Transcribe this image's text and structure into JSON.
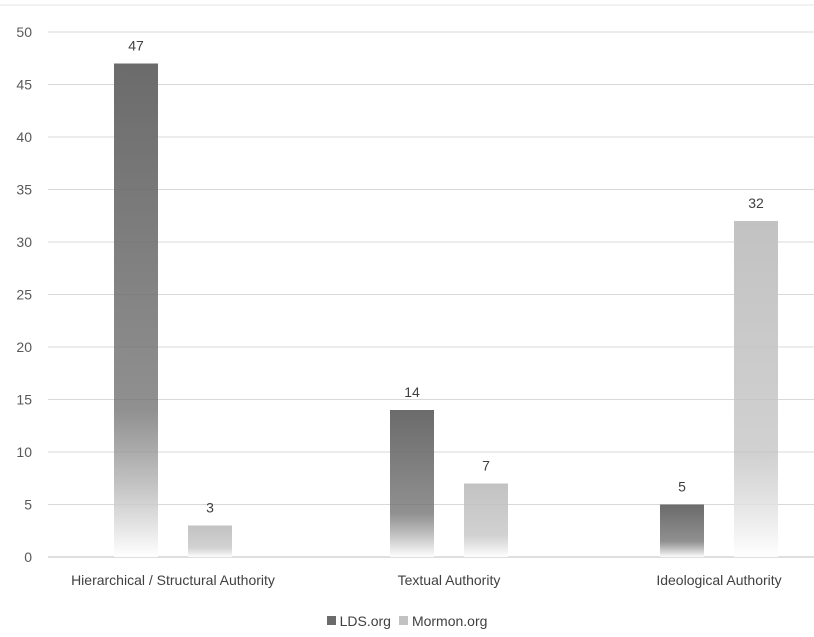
{
  "chart_data": {
    "type": "bar",
    "categories": [
      "Hierarchical / Structural Authority",
      "Textual Authority",
      "Ideological Authority"
    ],
    "series": [
      {
        "name": "LDS.org",
        "values": [
          47,
          14,
          5
        ],
        "color": "#6b6b6b"
      },
      {
        "name": "Mormon.org",
        "values": [
          3,
          7,
          32
        ],
        "color": "#c2c2c2"
      }
    ],
    "title": "",
    "xlabel": "",
    "ylabel": "",
    "ylim": [
      0,
      50
    ],
    "yticks": [
      0,
      5,
      10,
      15,
      20,
      25,
      30,
      35,
      40,
      45,
      50
    ],
    "grid": true,
    "legend_position": "bottom",
    "data_labels": true
  }
}
